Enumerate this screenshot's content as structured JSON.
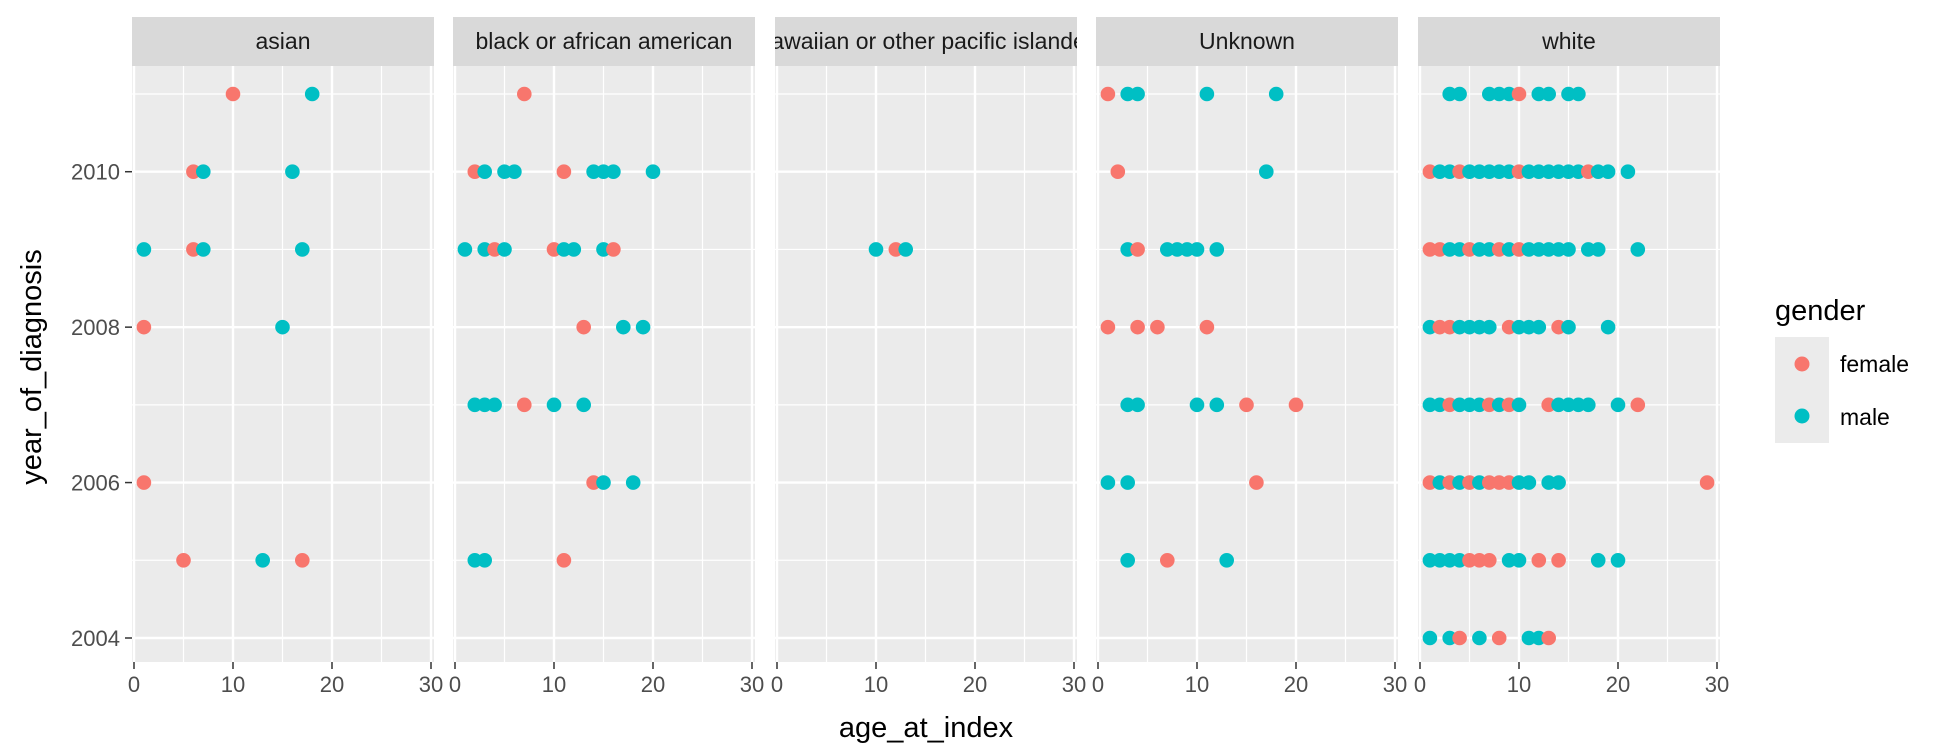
{
  "chart_data": {
    "type": "scatter",
    "title": "",
    "xlabel": "age_at_index",
    "ylabel": "year_of_diagnosis",
    "xlim": [
      0,
      30
    ],
    "ylim": [
      2003.6,
      2011.4
    ],
    "x_ticks": [
      0,
      10,
      20,
      30
    ],
    "y_ticks": [
      2004,
      2006,
      2008,
      2010
    ],
    "grid": true,
    "legend": {
      "title": "gender",
      "position": "right",
      "entries": [
        {
          "name": "female",
          "color": "#F8766D"
        },
        {
          "name": "male",
          "color": "#00BFC4"
        }
      ]
    },
    "facets": [
      {
        "name": "asian",
        "points": [
          {
            "x": 10,
            "y": 2011,
            "g": "female"
          },
          {
            "x": 18,
            "y": 2011,
            "g": "male"
          },
          {
            "x": 6,
            "y": 2010,
            "g": "female"
          },
          {
            "x": 7,
            "y": 2010,
            "g": "male"
          },
          {
            "x": 16,
            "y": 2010,
            "g": "male"
          },
          {
            "x": 1,
            "y": 2009,
            "g": "male"
          },
          {
            "x": 6,
            "y": 2009,
            "g": "female"
          },
          {
            "x": 7,
            "y": 2009,
            "g": "male"
          },
          {
            "x": 17,
            "y": 2009,
            "g": "male"
          },
          {
            "x": 1,
            "y": 2008,
            "g": "female"
          },
          {
            "x": 15,
            "y": 2008,
            "g": "male"
          },
          {
            "x": 1,
            "y": 2006,
            "g": "female"
          },
          {
            "x": 5,
            "y": 2005,
            "g": "female"
          },
          {
            "x": 13,
            "y": 2005,
            "g": "male"
          },
          {
            "x": 17,
            "y": 2005,
            "g": "female"
          }
        ]
      },
      {
        "name": "black or african american",
        "points": [
          {
            "x": 7,
            "y": 2011,
            "g": "female"
          },
          {
            "x": 2,
            "y": 2010,
            "g": "female"
          },
          {
            "x": 3,
            "y": 2010,
            "g": "male"
          },
          {
            "x": 5,
            "y": 2010,
            "g": "male"
          },
          {
            "x": 6,
            "y": 2010,
            "g": "male"
          },
          {
            "x": 11,
            "y": 2010,
            "g": "female"
          },
          {
            "x": 14,
            "y": 2010,
            "g": "male"
          },
          {
            "x": 15,
            "y": 2010,
            "g": "male"
          },
          {
            "x": 16,
            "y": 2010,
            "g": "male"
          },
          {
            "x": 20,
            "y": 2010,
            "g": "male"
          },
          {
            "x": 1,
            "y": 2009,
            "g": "male"
          },
          {
            "x": 3,
            "y": 2009,
            "g": "male"
          },
          {
            "x": 4,
            "y": 2009,
            "g": "female"
          },
          {
            "x": 5,
            "y": 2009,
            "g": "male"
          },
          {
            "x": 10,
            "y": 2009,
            "g": "female"
          },
          {
            "x": 11,
            "y": 2009,
            "g": "male"
          },
          {
            "x": 12,
            "y": 2009,
            "g": "male"
          },
          {
            "x": 15,
            "y": 2009,
            "g": "male"
          },
          {
            "x": 16,
            "y": 2009,
            "g": "female"
          },
          {
            "x": 13,
            "y": 2008,
            "g": "female"
          },
          {
            "x": 17,
            "y": 2008,
            "g": "male"
          },
          {
            "x": 19,
            "y": 2008,
            "g": "male"
          },
          {
            "x": 2,
            "y": 2007,
            "g": "male"
          },
          {
            "x": 3,
            "y": 2007,
            "g": "male"
          },
          {
            "x": 4,
            "y": 2007,
            "g": "male"
          },
          {
            "x": 7,
            "y": 2007,
            "g": "female"
          },
          {
            "x": 10,
            "y": 2007,
            "g": "male"
          },
          {
            "x": 13,
            "y": 2007,
            "g": "male"
          },
          {
            "x": 14,
            "y": 2006,
            "g": "female"
          },
          {
            "x": 15,
            "y": 2006,
            "g": "male"
          },
          {
            "x": 18,
            "y": 2006,
            "g": "male"
          },
          {
            "x": 2,
            "y": 2005,
            "g": "male"
          },
          {
            "x": 3,
            "y": 2005,
            "g": "male"
          },
          {
            "x": 11,
            "y": 2005,
            "g": "female"
          }
        ]
      },
      {
        "name": "hawaiian or other pacific islander",
        "points": [
          {
            "x": 10,
            "y": 2009,
            "g": "male"
          },
          {
            "x": 12,
            "y": 2009,
            "g": "female"
          },
          {
            "x": 13,
            "y": 2009,
            "g": "male"
          }
        ]
      },
      {
        "name": "Unknown",
        "points": [
          {
            "x": 1,
            "y": 2011,
            "g": "female"
          },
          {
            "x": 3,
            "y": 2011,
            "g": "male"
          },
          {
            "x": 4,
            "y": 2011,
            "g": "male"
          },
          {
            "x": 11,
            "y": 2011,
            "g": "male"
          },
          {
            "x": 18,
            "y": 2011,
            "g": "male"
          },
          {
            "x": 2,
            "y": 2010,
            "g": "female"
          },
          {
            "x": 17,
            "y": 2010,
            "g": "male"
          },
          {
            "x": 3,
            "y": 2009,
            "g": "male"
          },
          {
            "x": 4,
            "y": 2009,
            "g": "female"
          },
          {
            "x": 7,
            "y": 2009,
            "g": "male"
          },
          {
            "x": 8,
            "y": 2009,
            "g": "male"
          },
          {
            "x": 9,
            "y": 2009,
            "g": "male"
          },
          {
            "x": 10,
            "y": 2009,
            "g": "male"
          },
          {
            "x": 12,
            "y": 2009,
            "g": "male"
          },
          {
            "x": 1,
            "y": 2008,
            "g": "female"
          },
          {
            "x": 4,
            "y": 2008,
            "g": "female"
          },
          {
            "x": 6,
            "y": 2008,
            "g": "female"
          },
          {
            "x": 11,
            "y": 2008,
            "g": "female"
          },
          {
            "x": 3,
            "y": 2007,
            "g": "male"
          },
          {
            "x": 4,
            "y": 2007,
            "g": "male"
          },
          {
            "x": 10,
            "y": 2007,
            "g": "male"
          },
          {
            "x": 12,
            "y": 2007,
            "g": "male"
          },
          {
            "x": 15,
            "y": 2007,
            "g": "female"
          },
          {
            "x": 20,
            "y": 2007,
            "g": "female"
          },
          {
            "x": 1,
            "y": 2006,
            "g": "male"
          },
          {
            "x": 3,
            "y": 2006,
            "g": "male"
          },
          {
            "x": 16,
            "y": 2006,
            "g": "female"
          },
          {
            "x": 3,
            "y": 2005,
            "g": "male"
          },
          {
            "x": 7,
            "y": 2005,
            "g": "female"
          },
          {
            "x": 13,
            "y": 2005,
            "g": "male"
          }
        ]
      },
      {
        "name": "white",
        "points": [
          {
            "x": 3,
            "y": 2011,
            "g": "male"
          },
          {
            "x": 4,
            "y": 2011,
            "g": "male"
          },
          {
            "x": 7,
            "y": 2011,
            "g": "male"
          },
          {
            "x": 8,
            "y": 2011,
            "g": "male"
          },
          {
            "x": 9,
            "y": 2011,
            "g": "male"
          },
          {
            "x": 10,
            "y": 2011,
            "g": "female"
          },
          {
            "x": 12,
            "y": 2011,
            "g": "male"
          },
          {
            "x": 13,
            "y": 2011,
            "g": "male"
          },
          {
            "x": 15,
            "y": 2011,
            "g": "male"
          },
          {
            "x": 16,
            "y": 2011,
            "g": "male"
          },
          {
            "x": 1,
            "y": 2010,
            "g": "female"
          },
          {
            "x": 2,
            "y": 2010,
            "g": "male"
          },
          {
            "x": 3,
            "y": 2010,
            "g": "male"
          },
          {
            "x": 4,
            "y": 2010,
            "g": "female"
          },
          {
            "x": 5,
            "y": 2010,
            "g": "male"
          },
          {
            "x": 6,
            "y": 2010,
            "g": "male"
          },
          {
            "x": 7,
            "y": 2010,
            "g": "male"
          },
          {
            "x": 8,
            "y": 2010,
            "g": "male"
          },
          {
            "x": 9,
            "y": 2010,
            "g": "male"
          },
          {
            "x": 10,
            "y": 2010,
            "g": "female"
          },
          {
            "x": 11,
            "y": 2010,
            "g": "male"
          },
          {
            "x": 12,
            "y": 2010,
            "g": "male"
          },
          {
            "x": 13,
            "y": 2010,
            "g": "male"
          },
          {
            "x": 14,
            "y": 2010,
            "g": "male"
          },
          {
            "x": 15,
            "y": 2010,
            "g": "male"
          },
          {
            "x": 16,
            "y": 2010,
            "g": "male"
          },
          {
            "x": 17,
            "y": 2010,
            "g": "female"
          },
          {
            "x": 18,
            "y": 2010,
            "g": "male"
          },
          {
            "x": 19,
            "y": 2010,
            "g": "male"
          },
          {
            "x": 21,
            "y": 2010,
            "g": "male"
          },
          {
            "x": 1,
            "y": 2009,
            "g": "female"
          },
          {
            "x": 2,
            "y": 2009,
            "g": "female"
          },
          {
            "x": 3,
            "y": 2009,
            "g": "male"
          },
          {
            "x": 4,
            "y": 2009,
            "g": "male"
          },
          {
            "x": 5,
            "y": 2009,
            "g": "female"
          },
          {
            "x": 6,
            "y": 2009,
            "g": "male"
          },
          {
            "x": 7,
            "y": 2009,
            "g": "male"
          },
          {
            "x": 8,
            "y": 2009,
            "g": "female"
          },
          {
            "x": 9,
            "y": 2009,
            "g": "male"
          },
          {
            "x": 10,
            "y": 2009,
            "g": "female"
          },
          {
            "x": 11,
            "y": 2009,
            "g": "male"
          },
          {
            "x": 12,
            "y": 2009,
            "g": "male"
          },
          {
            "x": 13,
            "y": 2009,
            "g": "male"
          },
          {
            "x": 14,
            "y": 2009,
            "g": "male"
          },
          {
            "x": 15,
            "y": 2009,
            "g": "male"
          },
          {
            "x": 17,
            "y": 2009,
            "g": "male"
          },
          {
            "x": 18,
            "y": 2009,
            "g": "male"
          },
          {
            "x": 22,
            "y": 2009,
            "g": "male"
          },
          {
            "x": 1,
            "y": 2008,
            "g": "male"
          },
          {
            "x": 2,
            "y": 2008,
            "g": "female"
          },
          {
            "x": 3,
            "y": 2008,
            "g": "female"
          },
          {
            "x": 4,
            "y": 2008,
            "g": "male"
          },
          {
            "x": 5,
            "y": 2008,
            "g": "male"
          },
          {
            "x": 6,
            "y": 2008,
            "g": "male"
          },
          {
            "x": 7,
            "y": 2008,
            "g": "male"
          },
          {
            "x": 9,
            "y": 2008,
            "g": "female"
          },
          {
            "x": 10,
            "y": 2008,
            "g": "male"
          },
          {
            "x": 11,
            "y": 2008,
            "g": "male"
          },
          {
            "x": 12,
            "y": 2008,
            "g": "male"
          },
          {
            "x": 14,
            "y": 2008,
            "g": "female"
          },
          {
            "x": 15,
            "y": 2008,
            "g": "male"
          },
          {
            "x": 19,
            "y": 2008,
            "g": "male"
          },
          {
            "x": 1,
            "y": 2007,
            "g": "male"
          },
          {
            "x": 2,
            "y": 2007,
            "g": "male"
          },
          {
            "x": 3,
            "y": 2007,
            "g": "female"
          },
          {
            "x": 4,
            "y": 2007,
            "g": "male"
          },
          {
            "x": 5,
            "y": 2007,
            "g": "male"
          },
          {
            "x": 6,
            "y": 2007,
            "g": "male"
          },
          {
            "x": 7,
            "y": 2007,
            "g": "female"
          },
          {
            "x": 8,
            "y": 2007,
            "g": "male"
          },
          {
            "x": 9,
            "y": 2007,
            "g": "female"
          },
          {
            "x": 10,
            "y": 2007,
            "g": "male"
          },
          {
            "x": 13,
            "y": 2007,
            "g": "female"
          },
          {
            "x": 14,
            "y": 2007,
            "g": "male"
          },
          {
            "x": 15,
            "y": 2007,
            "g": "male"
          },
          {
            "x": 16,
            "y": 2007,
            "g": "male"
          },
          {
            "x": 17,
            "y": 2007,
            "g": "male"
          },
          {
            "x": 20,
            "y": 2007,
            "g": "male"
          },
          {
            "x": 22,
            "y": 2007,
            "g": "female"
          },
          {
            "x": 1,
            "y": 2006,
            "g": "female"
          },
          {
            "x": 2,
            "y": 2006,
            "g": "male"
          },
          {
            "x": 3,
            "y": 2006,
            "g": "female"
          },
          {
            "x": 4,
            "y": 2006,
            "g": "male"
          },
          {
            "x": 5,
            "y": 2006,
            "g": "female"
          },
          {
            "x": 6,
            "y": 2006,
            "g": "male"
          },
          {
            "x": 7,
            "y": 2006,
            "g": "female"
          },
          {
            "x": 8,
            "y": 2006,
            "g": "female"
          },
          {
            "x": 9,
            "y": 2006,
            "g": "female"
          },
          {
            "x": 10,
            "y": 2006,
            "g": "male"
          },
          {
            "x": 11,
            "y": 2006,
            "g": "male"
          },
          {
            "x": 13,
            "y": 2006,
            "g": "male"
          },
          {
            "x": 14,
            "y": 2006,
            "g": "male"
          },
          {
            "x": 29,
            "y": 2006,
            "g": "female"
          },
          {
            "x": 1,
            "y": 2005,
            "g": "male"
          },
          {
            "x": 2,
            "y": 2005,
            "g": "male"
          },
          {
            "x": 3,
            "y": 2005,
            "g": "male"
          },
          {
            "x": 4,
            "y": 2005,
            "g": "male"
          },
          {
            "x": 5,
            "y": 2005,
            "g": "female"
          },
          {
            "x": 6,
            "y": 2005,
            "g": "female"
          },
          {
            "x": 7,
            "y": 2005,
            "g": "female"
          },
          {
            "x": 9,
            "y": 2005,
            "g": "male"
          },
          {
            "x": 10,
            "y": 2005,
            "g": "male"
          },
          {
            "x": 12,
            "y": 2005,
            "g": "female"
          },
          {
            "x": 14,
            "y": 2005,
            "g": "female"
          },
          {
            "x": 18,
            "y": 2005,
            "g": "male"
          },
          {
            "x": 20,
            "y": 2005,
            "g": "male"
          },
          {
            "x": 1,
            "y": 2004,
            "g": "male"
          },
          {
            "x": 3,
            "y": 2004,
            "g": "male"
          },
          {
            "x": 4,
            "y": 2004,
            "g": "female"
          },
          {
            "x": 6,
            "y": 2004,
            "g": "male"
          },
          {
            "x": 8,
            "y": 2004,
            "g": "female"
          },
          {
            "x": 11,
            "y": 2004,
            "g": "male"
          },
          {
            "x": 12,
            "y": 2004,
            "g": "male"
          },
          {
            "x": 13,
            "y": 2004,
            "g": "female"
          }
        ]
      }
    ]
  }
}
